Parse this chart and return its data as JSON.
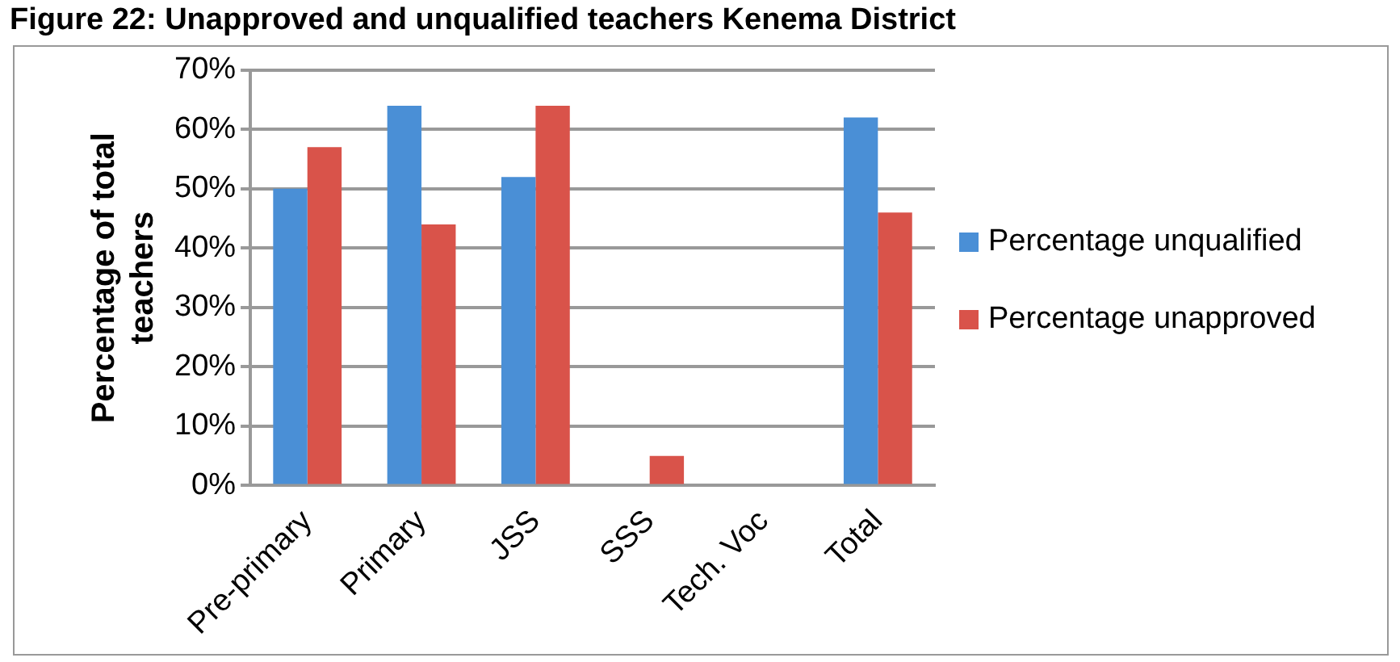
{
  "chart_data": {
    "type": "bar",
    "title": "Figure 22: Unapproved and unqualified teachers Kenema District",
    "ylabel": "Percentage of total teachers",
    "categories": [
      "Pre-primary",
      "Primary",
      "JSS",
      "SSS",
      "Tech. Voc",
      "Total"
    ],
    "series": [
      {
        "name": "Percentage unqualified",
        "color": "#4a8fd6",
        "values": [
          50,
          64,
          52,
          0,
          0,
          62
        ]
      },
      {
        "name": "Percentage unapproved",
        "color": "#d9534a",
        "values": [
          57,
          44,
          64,
          5,
          0,
          46
        ]
      }
    ],
    "ylim": [
      0,
      70
    ],
    "yticks": [
      {
        "value": 0,
        "label": "0%"
      },
      {
        "value": 10,
        "label": "10%"
      },
      {
        "value": 20,
        "label": "20%"
      },
      {
        "value": 30,
        "label": "30%"
      },
      {
        "value": 40,
        "label": "40%"
      },
      {
        "value": 50,
        "label": "50%"
      },
      {
        "value": 60,
        "label": "60%"
      },
      {
        "value": 70,
        "label": "70%"
      }
    ],
    "grid": "y",
    "legend": "right"
  }
}
